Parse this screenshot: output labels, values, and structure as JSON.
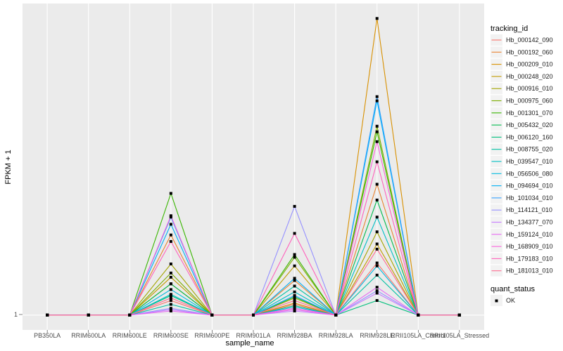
{
  "chart_data": {
    "type": "line",
    "xlabel": "sample_name",
    "ylabel": "FPKM + 1",
    "y_scale": "log10",
    "ylim": [
      0.9,
      9.2
    ],
    "y_ticks": [
      "1"
    ],
    "grid": true,
    "legend_position": "right",
    "legend_title": "tracking_id",
    "legend2_title": "quant_status",
    "legend2_items": [
      "OK"
    ],
    "categories": [
      "PB350LA",
      "RRIM600LA",
      "RRIM600LE",
      "RRIM600SE",
      "RRIM600PE",
      "RRIM901LA",
      "RRIM928BA",
      "RRIM928LA",
      "RRIM928LE",
      "RRII105LA_Control",
      "RRII105LA_Stressed"
    ],
    "series": [
      {
        "name": "Hb_000142_090",
        "color": "#F8766D",
        "values": [
          1,
          1,
          1,
          1.11,
          1,
          1,
          1.08,
          1,
          1.45,
          1,
          1
        ]
      },
      {
        "name": "Hb_000192_060",
        "color": "#EA8331",
        "values": [
          1,
          1,
          1,
          1.77,
          1,
          1,
          1.28,
          1,
          2.54,
          1,
          1
        ]
      },
      {
        "name": "Hb_000209_010",
        "color": "#D89000",
        "values": [
          1,
          1,
          1,
          1.25,
          1,
          1,
          1.09,
          1,
          8.27,
          1,
          1
        ]
      },
      {
        "name": "Hb_000248_020",
        "color": "#C09B00",
        "values": [
          1,
          1,
          1,
          1.31,
          1,
          1,
          1.42,
          1,
          1.66,
          1,
          1
        ]
      },
      {
        "name": "Hb_000916_010",
        "color": "#A3A500",
        "values": [
          1,
          1,
          1,
          1.44,
          1,
          1,
          1.13,
          1,
          1.81,
          1,
          1
        ]
      },
      {
        "name": "Hb_000975_060",
        "color": "#7CAE00",
        "values": [
          1,
          1,
          1,
          1.35,
          1,
          1,
          1.51,
          1,
          3.84,
          1,
          1
        ]
      },
      {
        "name": "Hb_001301_070",
        "color": "#39B600",
        "values": [
          1,
          1,
          1,
          2.38,
          1,
          1,
          1.54,
          1,
          3.69,
          1,
          1
        ]
      },
      {
        "name": "Hb_005432_020",
        "color": "#00BB4E",
        "values": [
          1,
          1,
          1,
          1.25,
          1,
          1,
          1.14,
          1,
          2.27,
          1,
          1
        ]
      },
      {
        "name": "Hb_006120_160",
        "color": "#00BF7D",
        "values": [
          1,
          1,
          1,
          1.15,
          1,
          1,
          1.07,
          1,
          1.11,
          1,
          1
        ]
      },
      {
        "name": "Hb_008755_020",
        "color": "#00C1A3",
        "values": [
          1,
          1,
          1,
          1.08,
          1,
          1,
          1.23,
          1,
          1.33,
          1,
          1
        ]
      },
      {
        "name": "Hb_039547_010",
        "color": "#00BFC4",
        "values": [
          1,
          1,
          1,
          1.16,
          1,
          1,
          1.18,
          1,
          2.01,
          1,
          1
        ]
      },
      {
        "name": "Hb_056506_080",
        "color": "#00BAE0",
        "values": [
          1,
          1,
          1,
          1.2,
          1,
          1,
          1.06,
          1,
          1.42,
          1,
          1
        ]
      },
      {
        "name": "Hb_094694_010",
        "color": "#00B0F6",
        "values": [
          1,
          1,
          1,
          1.91,
          1,
          1,
          1.3,
          1,
          4.6,
          1,
          1
        ]
      },
      {
        "name": "Hb_101034_010",
        "color": "#35A2FF",
        "values": [
          1,
          1,
          1,
          2.01,
          1,
          1,
          1.15,
          1,
          4.74,
          1,
          1
        ]
      },
      {
        "name": "Hb_114121_010",
        "color": "#9590FF",
        "values": [
          1,
          1,
          1,
          1.05,
          1,
          1,
          2.17,
          1,
          1.19,
          1,
          1
        ]
      },
      {
        "name": "Hb_134377_070",
        "color": "#C77CFF",
        "values": [
          1,
          1,
          1,
          1.04,
          1,
          1,
          1.03,
          1,
          1.17,
          1,
          1
        ]
      },
      {
        "name": "Hb_159124_010",
        "color": "#E76BF3",
        "values": [
          1,
          1,
          1,
          1.03,
          1,
          1,
          1.04,
          1,
          1.22,
          1,
          1
        ]
      },
      {
        "name": "Hb_168909_010",
        "color": "#FA62DB",
        "values": [
          1,
          1,
          1,
          2.03,
          1,
          1,
          1.05,
          1,
          3.44,
          1,
          1
        ]
      },
      {
        "name": "Hb_179183_010",
        "color": "#FF62BC",
        "values": [
          1,
          1,
          1,
          1.69,
          1,
          1,
          1.79,
          1,
          2.98,
          1,
          1
        ]
      },
      {
        "name": "Hb_181013_010",
        "color": "#FF6C91",
        "values": [
          1,
          1,
          1,
          1.13,
          1,
          1,
          1.11,
          1,
          1.6,
          1,
          1
        ]
      }
    ]
  }
}
